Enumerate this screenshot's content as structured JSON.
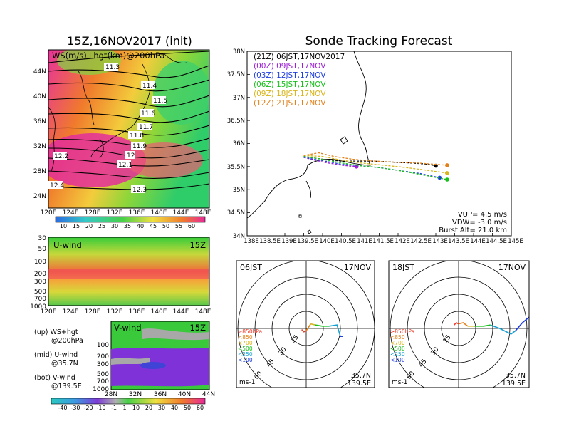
{
  "colors": {
    "purple": "#9b1fd6",
    "blue": "#1f3fe0",
    "green": "#18c01c",
    "yellow": "#d9b41a",
    "orange": "#e2801a",
    "black": "#000000",
    "red": "#f03a2a"
  },
  "left_panel": {
    "title": "15Z,16NOV2017 (init)",
    "map_label": "WS(m/s)+hgt(km)@200hPa",
    "lat_ticks": [
      "44N",
      "40N",
      "36N",
      "32N",
      "28N",
      "24N"
    ],
    "lon_ticks": [
      "120E",
      "124E",
      "128E",
      "132E",
      "136E",
      "140E",
      "144E",
      "148E"
    ],
    "contour_labels": [
      "11.3",
      "11.4",
      "11.5",
      "11.6",
      "11.7",
      "11.8",
      "11.9",
      "12",
      "12.1",
      "12.2",
      "12.3",
      "12.4"
    ],
    "ws_colorbar": [
      "10",
      "15",
      "20",
      "25",
      "30",
      "35",
      "40",
      "45",
      "50",
      "55",
      "60"
    ],
    "uwind_label": "U-wind",
    "uwind_time": "15Z",
    "pressure_ticks": [
      "30",
      "50",
      "100",
      "200",
      "300",
      "500",
      "700",
      "1000"
    ],
    "vwind_label": "V-wind",
    "vwind_time": "15Z",
    "vwind_lat_ticks": [
      "28N",
      "32N",
      "36N",
      "40N",
      "44N"
    ],
    "vwind_pressure_ticks": [
      "100",
      "200",
      "300",
      "500",
      "700",
      "1000"
    ],
    "legend_lines": [
      "(up) WS+hgt",
      "@200hPa",
      "(mid) U-wind",
      "@35.7N",
      "(bot) V-wind",
      "@139.5E"
    ],
    "v_colorbar": [
      "-40",
      "-30",
      "-20",
      "-10",
      "-1",
      "1",
      "10",
      "20",
      "30",
      "40",
      "50",
      "60"
    ]
  },
  "tracking": {
    "title": "Sonde Tracking Forecast",
    "lat_ticks": [
      "38N",
      "37.5N",
      "37N",
      "36.5N",
      "36N",
      "35.5N",
      "35N",
      "34.5N",
      "34N"
    ],
    "lon_ticks": [
      "138E",
      "138.5E",
      "139E",
      "139.5E",
      "140E",
      "140.5E",
      "141E",
      "141.5E",
      "142E",
      "142.5E",
      "143E",
      "143.5E",
      "144E",
      "144.5E",
      "145E"
    ],
    "legend": [
      {
        "text": "(21Z) 06JST,17NOV2017",
        "color": "#000000"
      },
      {
        "text": "(00Z) 09JST,17NOV",
        "color": "#9b1fd6"
      },
      {
        "text": "(03Z) 12JST,17NOV",
        "color": "#1f3fe0"
      },
      {
        "text": "(06Z) 15JST,17NOV",
        "color": "#18c01c"
      },
      {
        "text": "(09Z) 18JST,17NOV",
        "color": "#d9b41a"
      },
      {
        "text": "(12Z) 21JST,17NOV",
        "color": "#e2801a"
      }
    ],
    "params": [
      "VUP=  4.5 m/s",
      "VDW= -3.0 m/s",
      "Burst Alt= 21.0 km"
    ]
  },
  "hodo_left": {
    "time": "06JST",
    "date": "17NOV",
    "levels": [
      "≥850hPa",
      "<850",
      "<700",
      "<500",
      "<250",
      "<100"
    ],
    "speed_labels": [
      "15",
      "30",
      "45",
      "60"
    ],
    "units": "ms-1",
    "loc1": "35.7N",
    "loc2": "139.5E"
  },
  "hodo_right": {
    "time": "18JST",
    "date": "17NOV",
    "levels": [
      "≥850hPa",
      "<850",
      "<700",
      "<500",
      "<250",
      "<100"
    ],
    "speed_labels": [
      "15",
      "30",
      "45",
      "60"
    ],
    "units": "ms-1",
    "loc1": "35.7N",
    "loc2": "139.5E"
  },
  "chart_data": [
    {
      "type": "line",
      "title": "Sonde Tracking Forecast",
      "xlabel": "",
      "ylabel": "",
      "xlim": [
        138,
        145
      ],
      "ylim": [
        34,
        38
      ],
      "series": [
        {
          "name": "(21Z) 06JST,17NOV2017",
          "x": [
            139.5,
            140.0,
            140.5,
            140.9,
            141.3,
            141.8,
            142.3,
            142.7,
            143.0
          ],
          "y": [
            35.72,
            35.66,
            35.62,
            35.62,
            35.62,
            35.6,
            35.58,
            35.56,
            35.52
          ]
        },
        {
          "name": "(00Z) 09JST,17NOV",
          "x": [
            139.5,
            140.0,
            140.5,
            140.9
          ],
          "y": [
            35.7,
            35.6,
            35.53,
            35.5
          ]
        },
        {
          "name": "(03Z) 12JST,17NOV",
          "x": [
            139.5,
            140.0,
            140.5,
            141.0,
            141.5,
            142.0,
            142.6,
            143.1
          ],
          "y": [
            35.7,
            35.63,
            35.55,
            35.52,
            35.48,
            35.42,
            35.35,
            35.26
          ]
        },
        {
          "name": "(06Z) 15JST,17NOV",
          "x": [
            139.5,
            140.0,
            140.5,
            141.0,
            141.5,
            142.0,
            142.6,
            143.3
          ],
          "y": [
            35.72,
            35.66,
            35.58,
            35.52,
            35.48,
            35.42,
            35.33,
            35.22
          ]
        },
        {
          "name": "(09Z) 18JST,17NOV",
          "x": [
            139.5,
            140.0,
            140.5,
            141.0,
            141.5,
            142.0,
            142.6,
            143.3
          ],
          "y": [
            35.74,
            35.72,
            35.64,
            35.58,
            35.54,
            35.5,
            35.44,
            35.36
          ]
        },
        {
          "name": "(12Z) 21JST,17NOV",
          "x": [
            139.5,
            139.9,
            140.3,
            140.8,
            141.2,
            141.8,
            142.5,
            143.3
          ],
          "y": [
            35.74,
            35.8,
            35.72,
            35.66,
            35.63,
            35.6,
            35.58,
            35.53
          ]
        }
      ]
    },
    {
      "type": "line",
      "title": "",
      "hodograph": "06JST 17NOV",
      "xlim": [
        -60,
        60
      ],
      "ylim": [
        -60,
        60
      ],
      "series": [
        {
          "name": "≥850hPa",
          "x": [
            -4,
            -2,
            0
          ],
          "y": [
            -1,
            -3,
            -2
          ]
        },
        {
          "name": "<850",
          "x": [
            0,
            2,
            4
          ],
          "y": [
            -2,
            1,
            4
          ]
        },
        {
          "name": "<700",
          "x": [
            4,
            8
          ],
          "y": [
            4,
            3
          ]
        },
        {
          "name": "<500",
          "x": [
            8,
            14,
            20
          ],
          "y": [
            3,
            2,
            2
          ]
        },
        {
          "name": "<250",
          "x": [
            20,
            27,
            30
          ],
          "y": [
            2,
            3,
            -7
          ]
        },
        {
          "name": "<100",
          "x": [
            30,
            32
          ],
          "y": [
            -7,
            -7
          ]
        }
      ]
    },
    {
      "type": "line",
      "title": "",
      "hodograph": "18JST 17NOV",
      "xlim": [
        -60,
        60
      ],
      "ylim": [
        -60,
        60
      ],
      "series": [
        {
          "name": "≥850hPa",
          "x": [
            -4,
            -2,
            0
          ],
          "y": [
            3,
            5,
            4
          ]
        },
        {
          "name": "<850",
          "x": [
            0,
            4,
            8
          ],
          "y": [
            4,
            5,
            2
          ]
        },
        {
          "name": "<700",
          "x": [
            8,
            14
          ],
          "y": [
            2,
            2
          ]
        },
        {
          "name": "<500",
          "x": [
            14,
            22,
            28
          ],
          "y": [
            2,
            2,
            3
          ]
        },
        {
          "name": "<250",
          "x": [
            28,
            36,
            46,
            50
          ],
          "y": [
            3,
            0,
            -5,
            -2
          ]
        },
        {
          "name": "<100",
          "x": [
            50,
            56,
            62
          ],
          "y": [
            -2,
            5,
            10
          ]
        }
      ]
    }
  ]
}
